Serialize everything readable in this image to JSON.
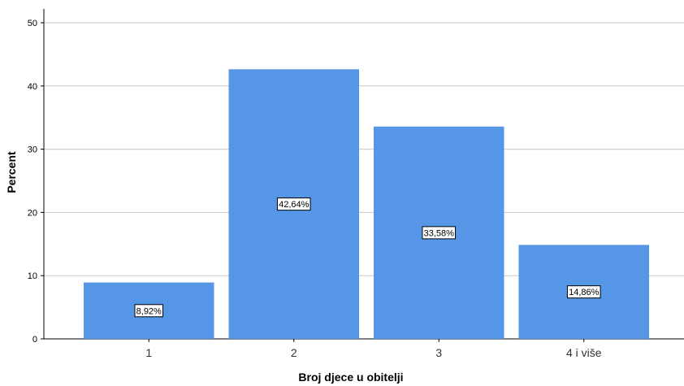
{
  "chart_data": {
    "type": "bar",
    "categories": [
      "1",
      "2",
      "3",
      "4 i više"
    ],
    "values": [
      8.92,
      42.64,
      33.58,
      14.86
    ],
    "data_labels": [
      "8,92%",
      "42,64%",
      "33,58%",
      "14,86%"
    ],
    "title": "",
    "xlabel": "Broj djece u obitelji",
    "ylabel": "Percent",
    "ylim": [
      0,
      50
    ],
    "yticks": [
      0,
      10,
      20,
      30,
      40,
      50
    ],
    "ytick_labels": [
      "0",
      "10",
      "20",
      "30",
      "40",
      "50"
    ],
    "grid": true,
    "legend": "none",
    "bar_color": "#5596e6",
    "grid_color": "#c8c8c8"
  }
}
